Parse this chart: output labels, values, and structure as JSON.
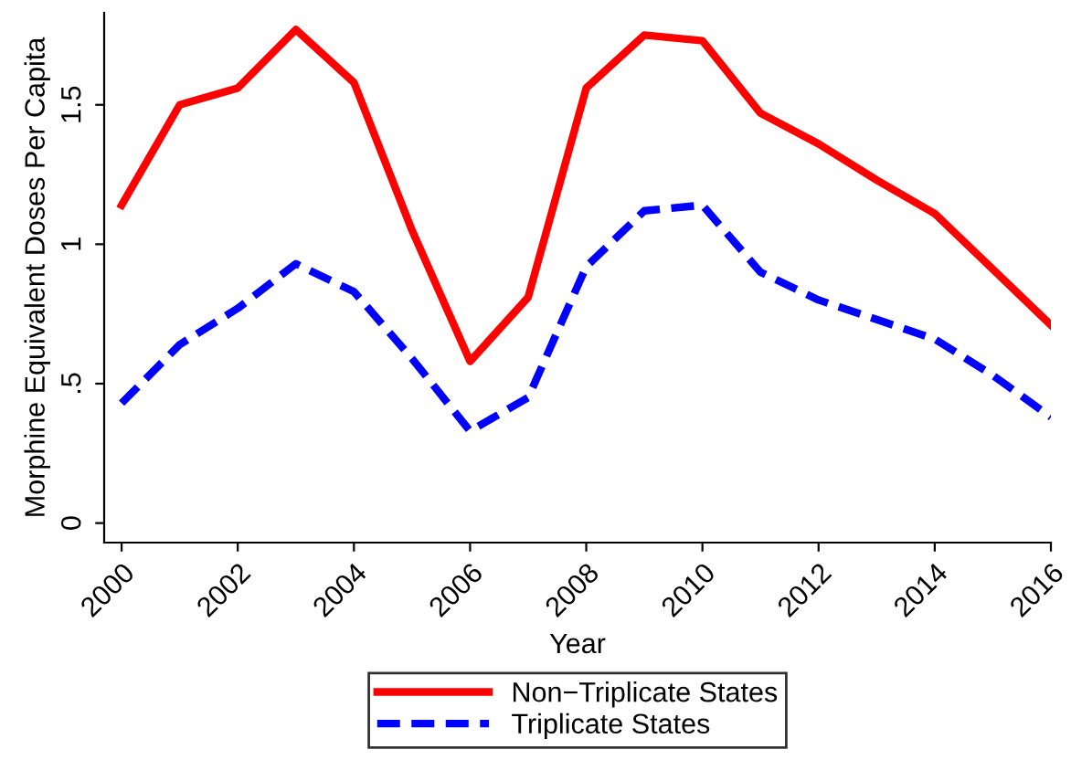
{
  "chart_data": {
    "type": "line",
    "xlabel": "Year",
    "ylabel": "Morphine Equivalent Doses Per Capita",
    "x": [
      2000,
      2001,
      2002,
      2003,
      2004,
      2005,
      2006,
      2007,
      2008,
      2009,
      2010,
      2011,
      2012,
      2013,
      2014,
      2015,
      2016
    ],
    "series": [
      {
        "name": "Non−Triplicate States",
        "color": "#ff0000",
        "line_style": "solid",
        "values": [
          1.14,
          1.5,
          1.56,
          1.77,
          1.58,
          1.05,
          0.58,
          0.81,
          1.56,
          1.75,
          1.73,
          1.47,
          1.36,
          1.23,
          1.11,
          0.91,
          0.71
        ]
      },
      {
        "name": "Triplicate States",
        "color": "#0000ff",
        "line_style": "dashed",
        "values": [
          0.43,
          0.64,
          0.77,
          0.93,
          0.83,
          0.59,
          0.33,
          0.45,
          0.92,
          1.12,
          1.14,
          0.9,
          0.8,
          0.73,
          0.66,
          0.53,
          0.38
        ]
      }
    ],
    "xlim": [
      1999.7,
      2016
    ],
    "xticks": [
      2000,
      2002,
      2004,
      2006,
      2008,
      2010,
      2012,
      2014,
      2016
    ],
    "ylim": [
      -0.07,
      1.83
    ],
    "yticks": [
      0,
      {
        "value": 0.5,
        "label": ".5"
      },
      1,
      1.5
    ],
    "grid": false,
    "legend": "bottom",
    "marker": "none"
  }
}
